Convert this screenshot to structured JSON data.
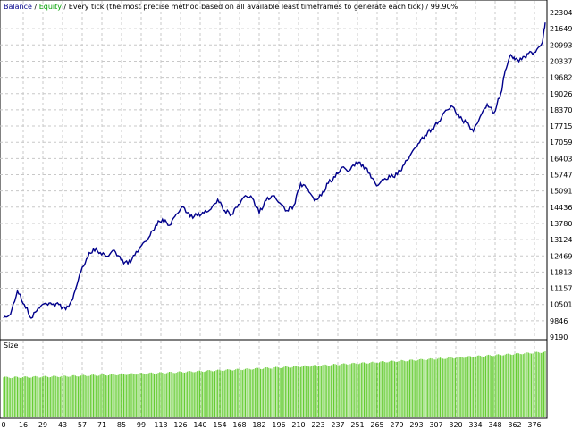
{
  "legend": {
    "balance": "Balance",
    "sep1": " / ",
    "equity": "Equity",
    "sep2": " / ",
    "model": "Every tick (the most precise method based on all available least timeframes to generate each tick)",
    "sep3": " / ",
    "quality": "99.90%"
  },
  "colors": {
    "balance": "#00008B",
    "equity": "#00A000",
    "volume": "#66CC33",
    "grid": "#C8C8C8",
    "text": "#000000"
  },
  "chart_data": [
    {
      "type": "line",
      "name": "balance-equity",
      "ylim": [
        9190,
        22304
      ],
      "xlim": [
        0,
        392
      ],
      "y_ticks": [
        "22304",
        "21649",
        "20993",
        "20337",
        "19682",
        "19026",
        "18370",
        "17715",
        "17059",
        "16403",
        "15747",
        "15091",
        "14436",
        "13780",
        "13124",
        "12469",
        "11813",
        "11157",
        "10501",
        "9846",
        "9190"
      ],
      "series": [
        {
          "name": "Balance",
          "x": [
            0,
            5,
            10,
            15,
            20,
            25,
            30,
            35,
            40,
            45,
            50,
            55,
            60,
            65,
            70,
            75,
            80,
            85,
            90,
            95,
            100,
            105,
            110,
            115,
            120,
            125,
            130,
            135,
            140,
            145,
            150,
            155,
            160,
            165,
            170,
            175,
            180,
            185,
            190,
            195,
            200,
            205,
            210,
            215,
            220,
            225,
            230,
            235,
            240,
            245,
            250,
            255,
            260,
            265,
            270,
            275,
            280,
            285,
            290,
            295,
            300,
            305,
            310,
            315,
            320,
            325,
            330,
            335,
            340,
            345,
            350,
            355,
            360,
            363,
            367,
            370,
            375,
            380,
            385,
            390,
            392
          ],
          "values": [
            9950,
            10100,
            11050,
            10500,
            9950,
            10350,
            10550,
            10500,
            10500,
            10300,
            10700,
            11700,
            12350,
            12750,
            12600,
            12450,
            12700,
            12300,
            12150,
            12500,
            12900,
            13200,
            13700,
            13950,
            13700,
            14150,
            14450,
            14050,
            14100,
            14200,
            14350,
            14750,
            14300,
            14150,
            14550,
            14900,
            14800,
            14200,
            14700,
            14900,
            14600,
            14300,
            14500,
            15400,
            15200,
            14700,
            14900,
            15400,
            15650,
            16050,
            15900,
            16250,
            16150,
            15800,
            15300,
            15550,
            15650,
            15750,
            16150,
            16600,
            17000,
            17350,
            17600,
            17900,
            18350,
            18500,
            18050,
            17850,
            17500,
            18100,
            18600,
            18250,
            19050,
            19950,
            20600,
            20400,
            20400,
            20650,
            20700,
            21100,
            21900
          ]
        }
      ],
      "x_ticks": [
        "0",
        "16",
        "29",
        "43",
        "57",
        "71",
        "85",
        "99",
        "113",
        "126",
        "140",
        "154",
        "168",
        "182",
        "196",
        "210",
        "223",
        "237",
        "251",
        "265",
        "279",
        "293",
        "307",
        "320",
        "334",
        "348",
        "362",
        "376"
      ]
    },
    {
      "type": "bar",
      "name": "volume",
      "title": "Size",
      "x_range": [
        0,
        392
      ],
      "start_level": 0.57,
      "end_level": 0.95
    }
  ]
}
